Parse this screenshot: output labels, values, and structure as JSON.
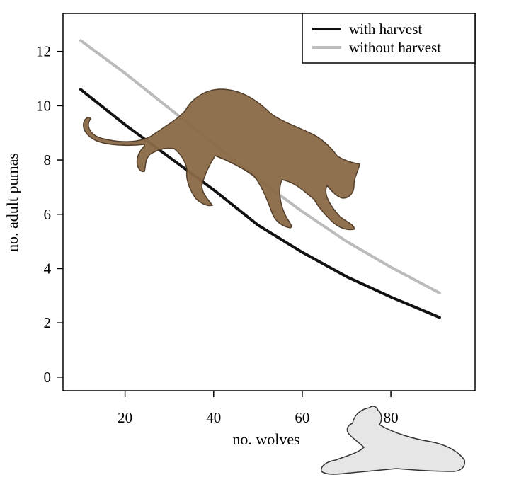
{
  "chart_data": {
    "type": "line",
    "xlabel": "no. wolves",
    "ylabel": "no. adult pumas",
    "xlim": [
      6,
      99
    ],
    "ylim": [
      -0.5,
      13.4
    ],
    "xticks": [
      20,
      40,
      60,
      80
    ],
    "yticks": [
      0,
      2,
      4,
      6,
      8,
      10,
      12
    ],
    "grid": false,
    "legend": "top-right",
    "series": [
      {
        "name": "with harvest",
        "color": "#111111",
        "x": [
          10,
          20,
          30,
          40,
          50,
          60,
          70,
          80,
          91
        ],
        "y": [
          10.6,
          9.3,
          8.1,
          6.9,
          5.6,
          4.6,
          3.7,
          2.95,
          2.2
        ]
      },
      {
        "name": "without harvest",
        "color": "#bbbbbb",
        "x": [
          10,
          20,
          30,
          40,
          50,
          60,
          70,
          80,
          91
        ],
        "y": [
          12.4,
          11.2,
          9.9,
          8.6,
          7.3,
          6.1,
          5.0,
          4.05,
          3.1
        ]
      }
    ]
  },
  "illustrations": {
    "puma": "puma-icon",
    "wolf": "wolf-icon"
  }
}
